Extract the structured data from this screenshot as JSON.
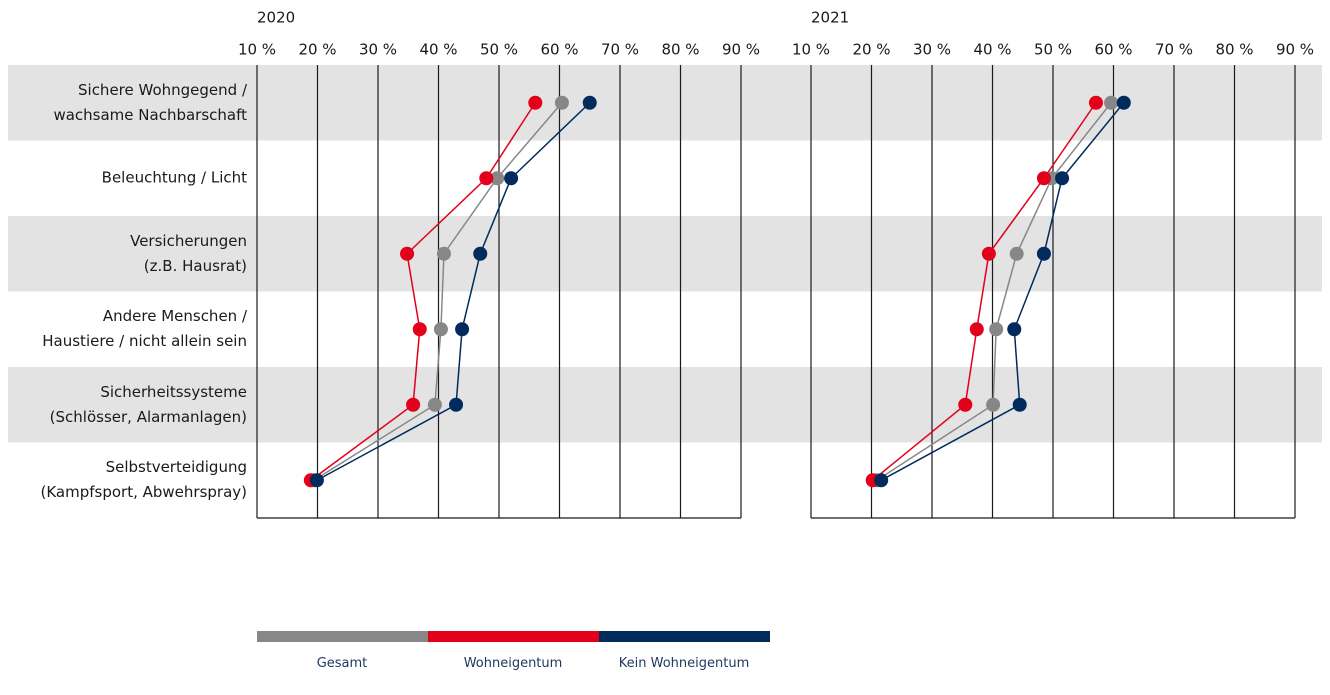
{
  "chart_data": [
    {
      "type": "line",
      "orientation": "horizontal",
      "title": "2020",
      "categories": [
        "Sichere Wohngegend /\nwachsame Nachbarschaft",
        "Beleuchtung / Licht",
        "Versicherungen\n(z.B. Hausrat)",
        "Andere Menschen /\nHaustiere / nicht allein sein",
        "Sicherheitssysteme\n(Schlösser, Alarmanlagen)",
        "Selbstverteidigung\n(Kampfsport, Abwehrspray)"
      ],
      "xlim": [
        10,
        90
      ],
      "xticks": [
        {
          "value": 10,
          "label": "10 %"
        },
        {
          "value": 20,
          "label": "20 %"
        },
        {
          "value": 30,
          "label": "30 %"
        },
        {
          "value": 40,
          "label": "40 %"
        },
        {
          "value": 50,
          "label": "50 %"
        },
        {
          "value": 60,
          "label": "60 %"
        },
        {
          "value": 70,
          "label": "70 %"
        },
        {
          "value": 80,
          "label": "80 %"
        },
        {
          "value": 90,
          "label": "90 %"
        }
      ],
      "grid": true,
      "legend": "bottom",
      "series": [
        {
          "name": "Gesamt",
          "color": "#878787",
          "values": [
            60.4,
            49.7,
            40.9,
            40.4,
            39.4,
            19.4
          ]
        },
        {
          "name": "Wohneigentum",
          "color": "#e2001a",
          "values": [
            56.0,
            47.9,
            34.8,
            36.9,
            35.8,
            18.9
          ]
        },
        {
          "name": "Kein Wohneigentum",
          "color": "#002b5c",
          "values": [
            65.0,
            52.0,
            46.9,
            43.9,
            42.9,
            19.9
          ]
        }
      ]
    },
    {
      "type": "line",
      "orientation": "horizontal",
      "title": "2021",
      "xlim": [
        10,
        90
      ],
      "xticks": [
        {
          "value": 10,
          "label": "10 %"
        },
        {
          "value": 20,
          "label": "20 %"
        },
        {
          "value": 30,
          "label": "30 %"
        },
        {
          "value": 40,
          "label": "40 %"
        },
        {
          "value": 50,
          "label": "50 %"
        },
        {
          "value": 60,
          "label": "60 %"
        },
        {
          "value": 70,
          "label": "70 %"
        },
        {
          "value": 80,
          "label": "80 %"
        },
        {
          "value": 90,
          "label": "90 %"
        }
      ],
      "grid": true,
      "series": [
        {
          "color": "#878787",
          "values": [
            59.6,
            49.8,
            44.0,
            40.6,
            40.1,
            20.9
          ]
        },
        {
          "color": "#e2001a",
          "values": [
            57.1,
            48.5,
            39.4,
            37.4,
            35.5,
            20.2
          ]
        },
        {
          "color": "#002b5c",
          "values": [
            61.7,
            51.5,
            48.5,
            43.6,
            44.5,
            21.6
          ]
        }
      ]
    }
  ]
}
